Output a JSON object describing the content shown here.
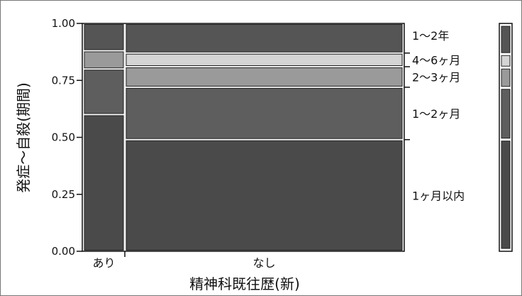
{
  "chart_data": {
    "type": "mosaic",
    "xlabel": "精神科既往歴(新)",
    "ylabel": "発症〜自殺(期間)",
    "ylim": [
      0,
      1
    ],
    "yticks": [
      "0.00",
      "0.25",
      "0.50",
      "0.75",
      "1.00"
    ],
    "categories": [
      "あり",
      "なし"
    ],
    "category_share": [
      0.13,
      0.87
    ],
    "series": [
      {
        "name": "1ヶ月以内",
        "color": "#4a4a4a",
        "values": [
          0.6,
          0.49
        ]
      },
      {
        "name": "1〜2ヶ月",
        "color": "#5e5e5e",
        "values": [
          0.2,
          0.23
        ]
      },
      {
        "name": "2〜3ヶ月",
        "color": "#9a9a9a",
        "values": [
          0.08,
          0.09
        ]
      },
      {
        "name": "4〜6ヶ月",
        "color": "#d4d4d4",
        "values": [
          0.0,
          0.06
        ]
      },
      {
        "name": "1〜2年",
        "color": "#555555",
        "values": [
          0.12,
          0.13
        ]
      }
    ],
    "legend": "right"
  }
}
